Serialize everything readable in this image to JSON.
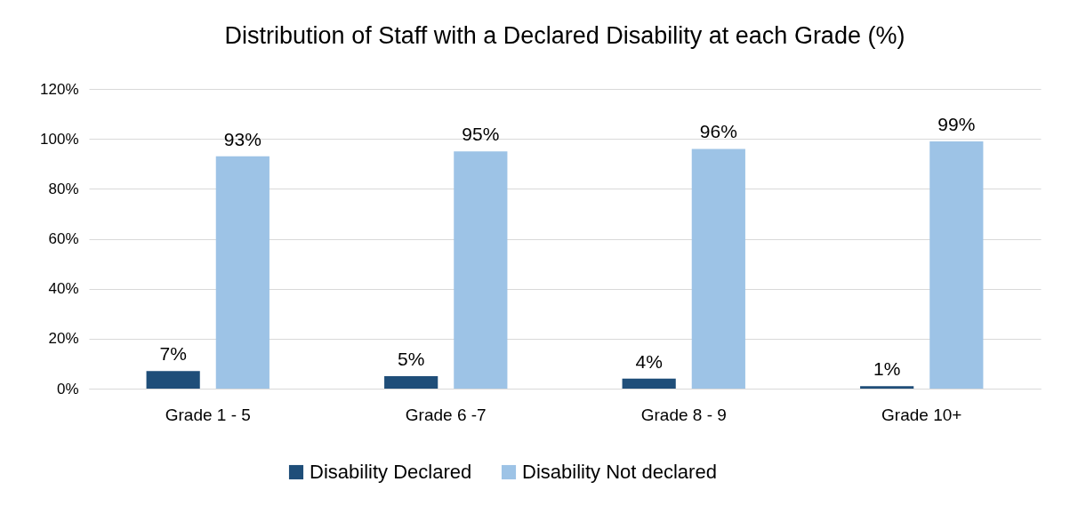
{
  "chart_data": {
    "type": "bar",
    "title": "Distribution of Staff with a Declared Disability at each Grade (%)",
    "categories": [
      "Grade 1 - 5",
      "Grade 6 -7",
      "Grade 8 - 9",
      "Grade 10+"
    ],
    "series": [
      {
        "name": "Disability Declared",
        "color": "#1f4e79",
        "values": [
          7,
          5,
          4,
          1
        ],
        "value_labels": [
          "7%",
          "5%",
          "4%",
          "1%"
        ]
      },
      {
        "name": "Disability Not declared",
        "color": "#9dc3e6",
        "values": [
          93,
          95,
          96,
          99
        ],
        "value_labels": [
          "93%",
          "95%",
          "96%",
          "99%"
        ]
      }
    ],
    "ylim": [
      0,
      120
    ],
    "yticks": [
      {
        "value": 0,
        "label": "0%"
      },
      {
        "value": 20,
        "label": "20%"
      },
      {
        "value": 40,
        "label": "40%"
      },
      {
        "value": 60,
        "label": "60%"
      },
      {
        "value": 80,
        "label": "80%"
      },
      {
        "value": 100,
        "label": "100%"
      },
      {
        "value": 120,
        "label": "120%"
      }
    ],
    "grid": true,
    "legend": "bottom"
  }
}
